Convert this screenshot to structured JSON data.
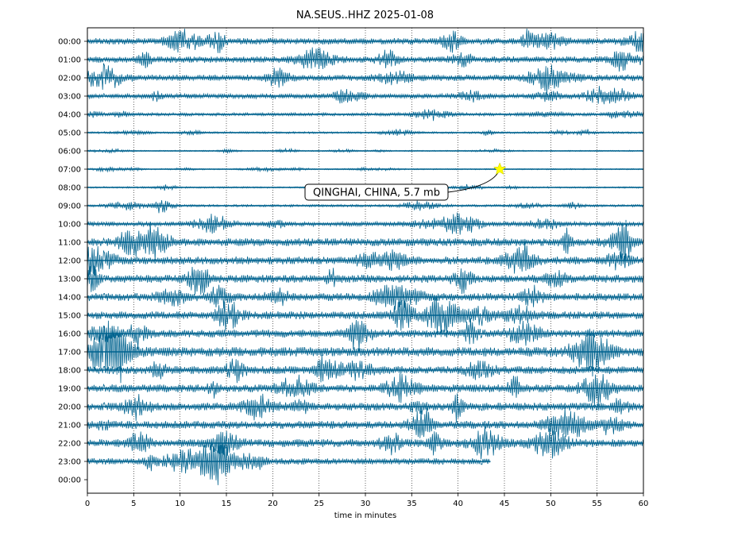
{
  "chart_data": {
    "type": "line",
    "title": "NA.SEUS..HHZ 2025-01-08",
    "xlabel": "time in minutes",
    "ylabel": "",
    "xlim": [
      0,
      60
    ],
    "x_ticks": [
      "0",
      "5",
      "10",
      "15",
      "20",
      "25",
      "30",
      "35",
      "40",
      "45",
      "50",
      "55",
      "60"
    ],
    "y_ticks": [
      "00:00",
      "01:00",
      "02:00",
      "03:00",
      "04:00",
      "05:00",
      "06:00",
      "07:00",
      "08:00",
      "09:00",
      "10:00",
      "11:00",
      "12:00",
      "13:00",
      "14:00",
      "15:00",
      "16:00",
      "17:00",
      "18:00",
      "19:00",
      "20:00",
      "21:00",
      "22:00",
      "23:00",
      "00:00"
    ],
    "grid": {
      "vertical_dotted": true
    },
    "trace_color": "#00638f",
    "series": [
      {
        "hour": "00:00",
        "amplitude": 4,
        "end_minute": 60
      },
      {
        "hour": "01:00",
        "amplitude": 4,
        "end_minute": 60
      },
      {
        "hour": "02:00",
        "amplitude": 4,
        "end_minute": 60
      },
      {
        "hour": "03:00",
        "amplitude": 3,
        "end_minute": 60
      },
      {
        "hour": "04:00",
        "amplitude": 2,
        "end_minute": 60
      },
      {
        "hour": "05:00",
        "amplitude": 1.2,
        "end_minute": 60
      },
      {
        "hour": "06:00",
        "amplitude": 0.8,
        "end_minute": 60
      },
      {
        "hour": "07:00",
        "amplitude": 0.8,
        "end_minute": 60
      },
      {
        "hour": "08:00",
        "amplitude": 1,
        "end_minute": 60
      },
      {
        "hour": "09:00",
        "amplitude": 1.5,
        "end_minute": 60
      },
      {
        "hour": "10:00",
        "amplitude": 3,
        "end_minute": 60
      },
      {
        "hour": "11:00",
        "amplitude": 5,
        "end_minute": 60
      },
      {
        "hour": "12:00",
        "amplitude": 5,
        "end_minute": 60
      },
      {
        "hour": "13:00",
        "amplitude": 5,
        "end_minute": 60
      },
      {
        "hour": "14:00",
        "amplitude": 5,
        "end_minute": 60
      },
      {
        "hour": "15:00",
        "amplitude": 5,
        "end_minute": 60
      },
      {
        "hour": "16:00",
        "amplitude": 5,
        "end_minute": 60
      },
      {
        "hour": "17:00",
        "amplitude": 6,
        "end_minute": 60
      },
      {
        "hour": "18:00",
        "amplitude": 5,
        "end_minute": 60
      },
      {
        "hour": "19:00",
        "amplitude": 5,
        "end_minute": 60
      },
      {
        "hour": "20:00",
        "amplitude": 5,
        "end_minute": 60
      },
      {
        "hour": "21:00",
        "amplitude": 5,
        "end_minute": 60
      },
      {
        "hour": "22:00",
        "amplitude": 5,
        "end_minute": 60
      },
      {
        "hour": "23:00",
        "amplitude": 4,
        "end_minute": 43.5
      }
    ],
    "event": {
      "label": "QINGHAI, CHINA, 5.7 mb",
      "hour": "07:00",
      "minute": 44.5,
      "marker": "star",
      "marker_color": "#ffff00"
    }
  }
}
